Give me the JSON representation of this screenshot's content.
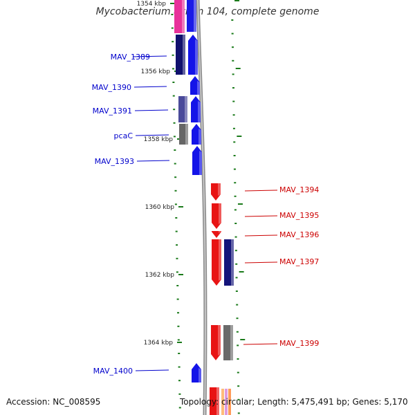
{
  "title": "Mycobacterium avium 104, complete genome",
  "footer": {
    "accession": "Accession: NC_008595",
    "topology": "Topology: circular; Length: 5,475,491 bp; Genes: 5,170"
  },
  "colors": {
    "forward_label": "#0000cc",
    "reverse_label": "#cc0000",
    "backbone": "#888888",
    "tick": "#1a7a1a"
  },
  "ticks": [
    {
      "label": "1354 kbp"
    },
    {
      "label": "1356 kbp"
    },
    {
      "label": "1358 kbp"
    },
    {
      "label": "1360 kbp"
    },
    {
      "label": "1362 kbp"
    },
    {
      "label": "1364 kbp"
    }
  ],
  "forward_genes_labeled": [
    {
      "name": "MAV_1389"
    },
    {
      "name": "MAV_1390"
    },
    {
      "name": "MAV_1391"
    },
    {
      "name": "pcaC"
    },
    {
      "name": "MAV_1393"
    },
    {
      "name": "MAV_1400"
    }
  ],
  "reverse_genes_labeled": [
    {
      "name": "MAV_1394"
    },
    {
      "name": "MAV_1395"
    },
    {
      "name": "MAV_1396"
    },
    {
      "name": "MAV_1397"
    },
    {
      "name": "MAV_1399"
    }
  ]
}
